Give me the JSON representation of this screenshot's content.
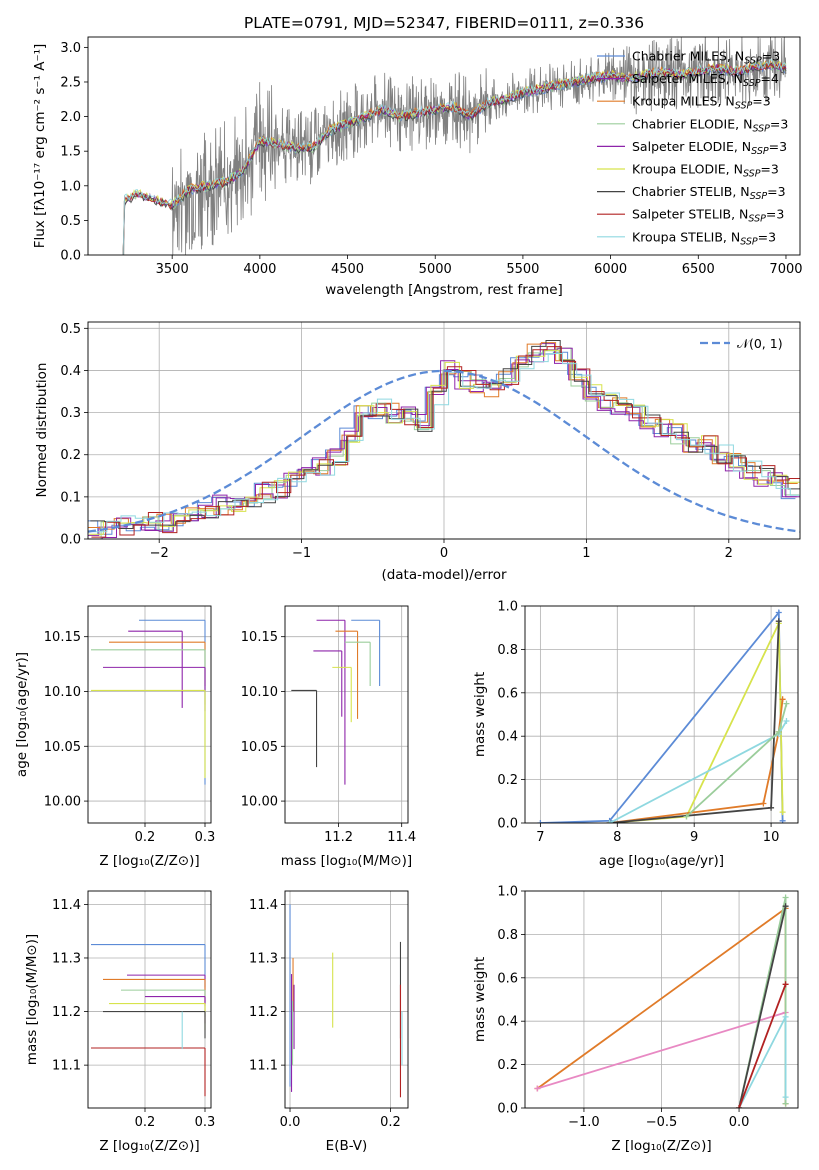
{
  "colors": {
    "series": [
      "#5c8bd6",
      "#8e24aa",
      "#e07b29",
      "#9bcd9b",
      "#8e24aa",
      "#d7e34c",
      "#444444",
      "#b22222",
      "#8fd8e0"
    ],
    "pink": "#e889c3",
    "gray": "#808080",
    "dash": "#5c8bd6"
  },
  "chart_data": [
    {
      "id": "spectrum",
      "type": "line",
      "title": "PLATE=0791, MJD=52347, FIBERID=0111, z=0.336",
      "xlabel": "wavelength [Angstrom, rest frame]",
      "ylabel": "Flux [fλ10⁻¹⁷ erg cm⁻² s⁻¹ A⁻¹]",
      "xlim": [
        3020,
        7080
      ],
      "ylim": [
        0,
        3.15
      ],
      "xticks": [
        3500,
        4000,
        4500,
        5000,
        5500,
        6000,
        6500,
        7000
      ],
      "yticks": [
        0.0,
        0.5,
        1.0,
        1.5,
        2.0,
        2.5,
        3.0
      ],
      "continuum": [
        [
          3220,
          0.78
        ],
        [
          3300,
          0.88
        ],
        [
          3400,
          0.8
        ],
        [
          3500,
          0.72
        ],
        [
          3600,
          0.95
        ],
        [
          3700,
          1.0
        ],
        [
          3800,
          1.05
        ],
        [
          3900,
          1.2
        ],
        [
          4000,
          1.65
        ],
        [
          4100,
          1.6
        ],
        [
          4200,
          1.55
        ],
        [
          4300,
          1.55
        ],
        [
          4400,
          1.8
        ],
        [
          4500,
          1.9
        ],
        [
          4600,
          2.0
        ],
        [
          4700,
          2.1
        ],
        [
          4800,
          2.0
        ],
        [
          4900,
          2.05
        ],
        [
          5000,
          2.1
        ],
        [
          5100,
          2.15
        ],
        [
          5200,
          2.0
        ],
        [
          5300,
          2.2
        ],
        [
          5400,
          2.25
        ],
        [
          5500,
          2.35
        ],
        [
          5600,
          2.4
        ],
        [
          5700,
          2.45
        ],
        [
          5800,
          2.5
        ],
        [
          5900,
          2.55
        ],
        [
          6000,
          2.6
        ],
        [
          6100,
          2.55
        ],
        [
          6200,
          2.6
        ],
        [
          6300,
          2.65
        ],
        [
          6400,
          2.6
        ],
        [
          6500,
          2.65
        ],
        [
          6600,
          2.7
        ],
        [
          6700,
          2.65
        ],
        [
          6800,
          2.7
        ],
        [
          6900,
          2.75
        ],
        [
          7000,
          2.7
        ]
      ],
      "legend": [
        {
          "label": "Chabrier MILES, N",
          "sub": "SSP",
          "val": "=3"
        },
        {
          "label": "Salpeter MILES, N",
          "sub": "SSP",
          "val": "=4"
        },
        {
          "label": "Kroupa MILES, N",
          "sub": "SSP",
          "val": "=3"
        },
        {
          "label": "Chabrier ELODIE, N",
          "sub": "SSP",
          "val": "=3"
        },
        {
          "label": "Salpeter ELODIE, N",
          "sub": "SSP",
          "val": "=3"
        },
        {
          "label": "Kroupa ELODIE, N",
          "sub": "SSP",
          "val": "=3"
        },
        {
          "label": "Chabrier STELIB, N",
          "sub": "SSP",
          "val": "=3"
        },
        {
          "label": "Salpeter STELIB, N",
          "sub": "SSP",
          "val": "=3"
        },
        {
          "label": "Kroupa STELIB, N",
          "sub": "SSP",
          "val": "=3"
        }
      ]
    },
    {
      "id": "residuals",
      "type": "step",
      "xlabel": "(data-model)/error",
      "ylabel": "Normed distribution",
      "xlim": [
        -2.5,
        2.5
      ],
      "ylim": [
        0,
        0.515
      ],
      "xticks": [
        -2,
        -1,
        0,
        1,
        2
      ],
      "yticks": [
        0.0,
        0.1,
        0.2,
        0.3,
        0.4,
        0.5
      ],
      "legend": "𝒩(0, 1)",
      "bin_edges_start": -2.5,
      "bin_width": 0.1,
      "base_heights": [
        0.02,
        0.02,
        0.03,
        0.03,
        0.04,
        0.04,
        0.05,
        0.06,
        0.07,
        0.08,
        0.09,
        0.1,
        0.11,
        0.12,
        0.14,
        0.15,
        0.17,
        0.2,
        0.25,
        0.3,
        0.31,
        0.3,
        0.29,
        0.28,
        0.34,
        0.4,
        0.38,
        0.37,
        0.36,
        0.38,
        0.42,
        0.44,
        0.45,
        0.43,
        0.38,
        0.35,
        0.33,
        0.31,
        0.3,
        0.28,
        0.26,
        0.25,
        0.23,
        0.22,
        0.2,
        0.18,
        0.16,
        0.15,
        0.14,
        0.12
      ]
    },
    {
      "id": "age-vs-Z",
      "type": "errorbar",
      "xlabel": "Z [log₁₀(Z/Z⊙)]",
      "ylabel": "age  [log₁₀(age/yr)]",
      "xlim": [
        0.105,
        0.31
      ],
      "ylim": [
        9.98,
        10.178
      ],
      "xticks": [
        0.2,
        0.3
      ],
      "yticks": [
        10.0,
        10.05,
        10.1,
        10.15
      ],
      "points": [
        {
          "x": 0.3,
          "y": 10.165,
          "xl": 0.11,
          "yl": 0.15
        },
        {
          "x": 0.262,
          "y": 10.155,
          "xl": 0.09,
          "yl": 0.07
        },
        {
          "x": 0.3,
          "y": 10.145,
          "xl": 0.16,
          "yl": 0.04
        },
        {
          "x": 0.3,
          "y": 10.138,
          "xl": 0.19,
          "yl": 0.05
        },
        {
          "x": 0.3,
          "y": 10.122,
          "xl": 0.17,
          "yl": 0.04
        },
        {
          "x": 0.3,
          "y": 10.101,
          "xl": 0.19,
          "yl": 0.08
        }
      ]
    },
    {
      "id": "age-vs-mass",
      "type": "errorbar",
      "xlabel": "mass [log₁₀(M/M⊙)]",
      "ylabel": "",
      "xlim": [
        11.03,
        11.42
      ],
      "ylim": [
        9.98,
        10.178
      ],
      "xticks": [
        11.2,
        11.4
      ],
      "yticks": [
        10.0,
        10.05,
        10.1,
        10.15
      ],
      "points": [
        {
          "x": 11.33,
          "y": 10.165,
          "xl": 0.09,
          "yl": 0.06
        },
        {
          "x": 11.22,
          "y": 10.165,
          "xl": 0.09,
          "yl": 0.15
        },
        {
          "x": 11.26,
          "y": 10.155,
          "xl": 0.07,
          "yl": 0.08
        },
        {
          "x": 11.3,
          "y": 10.145,
          "xl": 0.08,
          "yl": 0.04
        },
        {
          "x": 11.21,
          "y": 10.137,
          "xl": 0.09,
          "yl": 0.06
        },
        {
          "x": 11.24,
          "y": 10.122,
          "xl": 0.06,
          "yl": 0.05
        },
        {
          "x": 11.13,
          "y": 10.101,
          "xl": 0.08,
          "yl": 0.07
        }
      ]
    },
    {
      "id": "mw-vs-age",
      "type": "line",
      "xlabel": "age  [log₁₀(age/yr)]",
      "ylabel": "mass weight",
      "xlim": [
        6.8,
        10.35
      ],
      "ylim": [
        0,
        1.0
      ],
      "xticks": [
        7,
        8,
        9,
        10
      ],
      "yticks": [
        0.0,
        0.2,
        0.4,
        0.6,
        0.8,
        1.0
      ],
      "lines": [
        [
          [
            7.0,
            0.0
          ],
          [
            7.9,
            0.01
          ],
          [
            10.1,
            0.97
          ],
          [
            10.15,
            0.01
          ]
        ],
        [
          [
            7.9,
            0.0
          ],
          [
            8.9,
            0.03
          ],
          [
            10.1,
            0.92
          ],
          [
            10.15,
            0.05
          ]
        ],
        [
          [
            7.9,
            0.0
          ],
          [
            9.9,
            0.09
          ],
          [
            10.1,
            0.42
          ],
          [
            10.15,
            0.57
          ]
        ],
        [
          [
            7.9,
            0.0
          ],
          [
            10.0,
            0.07
          ],
          [
            10.1,
            0.93
          ]
        ],
        [
          [
            7.9,
            0.0
          ],
          [
            10.1,
            0.41
          ],
          [
            10.2,
            0.47
          ]
        ],
        [
          [
            8.9,
            0.03
          ],
          [
            10.1,
            0.42
          ],
          [
            10.2,
            0.55
          ]
        ]
      ]
    },
    {
      "id": "mass-vs-Z",
      "type": "errorbar",
      "xlabel": "Z [log₁₀(Z/Z⊙)]",
      "ylabel": "mass [log₁₀(M/M⊙)]",
      "xlim": [
        0.105,
        0.31
      ],
      "ylim": [
        11.02,
        11.425
      ],
      "xticks": [
        0.2,
        0.3
      ],
      "yticks": [
        11.1,
        11.2,
        11.3,
        11.4
      ],
      "points": [
        {
          "x": 0.3,
          "y": 11.325,
          "xl": 0.19,
          "yl": 0.08
        },
        {
          "x": 0.3,
          "y": 11.268,
          "xl": 0.13,
          "yl": 0.05
        },
        {
          "x": 0.3,
          "y": 11.26,
          "xl": 0.17,
          "yl": 0.05
        },
        {
          "x": 0.3,
          "y": 11.24,
          "xl": 0.14,
          "yl": 0.05
        },
        {
          "x": 0.3,
          "y": 11.228,
          "xl": 0.1,
          "yl": 0.05
        },
        {
          "x": 0.3,
          "y": 11.215,
          "xl": 0.16,
          "yl": 0.05
        },
        {
          "x": 0.3,
          "y": 11.2,
          "xl": 0.17,
          "yl": 0.05
        },
        {
          "x": 0.3,
          "y": 11.132,
          "xl": 0.19,
          "yl": 0.09
        },
        {
          "x": 0.262,
          "y": 11.2,
          "xl": 0.0,
          "yl": 0.07
        }
      ]
    },
    {
      "id": "mass-vs-ebv",
      "type": "errorbar",
      "xlabel": "E(B-V)",
      "ylabel": "",
      "xlim": [
        -0.01,
        0.235
      ],
      "ylim": [
        11.02,
        11.425
      ],
      "xticks": [
        0.0,
        0.2
      ],
      "yticks": [
        11.1,
        11.2,
        11.3,
        11.4
      ],
      "vlines": [
        [
          0.0,
          11.06,
          11.4
        ],
        [
          0.003,
          11.05,
          11.27
        ],
        [
          0.006,
          11.2,
          11.3
        ],
        [
          0.005,
          11.1,
          11.22
        ],
        [
          0.008,
          11.13,
          11.25
        ],
        [
          0.085,
          11.17,
          11.31
        ],
        [
          0.22,
          11.15,
          11.33
        ],
        [
          0.22,
          11.04,
          11.25
        ],
        [
          0.223,
          11.1,
          11.2
        ]
      ]
    },
    {
      "id": "mw-vs-Z",
      "type": "line",
      "xlabel": "Z [log₁₀(Z/Z⊙)]",
      "ylabel": "mass weight",
      "xlim": [
        -1.38,
        0.38
      ],
      "ylim": [
        0,
        1.0
      ],
      "xticks": [
        -1.0,
        -0.5,
        0.0
      ],
      "yticks": [
        0.0,
        0.2,
        0.4,
        0.6,
        0.8,
        1.0
      ],
      "lines": [
        [
          [
            -1.3,
            0.09
          ],
          [
            0.3,
            0.92
          ],
          [
            0.3,
            0.02
          ]
        ],
        [
          [
            -1.3,
            0.09
          ],
          [
            0.3,
            0.44
          ]
        ],
        [
          [
            0.0,
            0.0
          ],
          [
            0.3,
            0.97
          ],
          [
            0.3,
            0.02
          ]
        ],
        [
          [
            0.0,
            0.0
          ],
          [
            0.3,
            0.93
          ]
        ],
        [
          [
            0.0,
            0.0
          ],
          [
            0.3,
            0.42
          ],
          [
            0.3,
            0.05
          ]
        ],
        [
          [
            0.0,
            0.0
          ],
          [
            0.3,
            0.57
          ]
        ]
      ]
    }
  ]
}
